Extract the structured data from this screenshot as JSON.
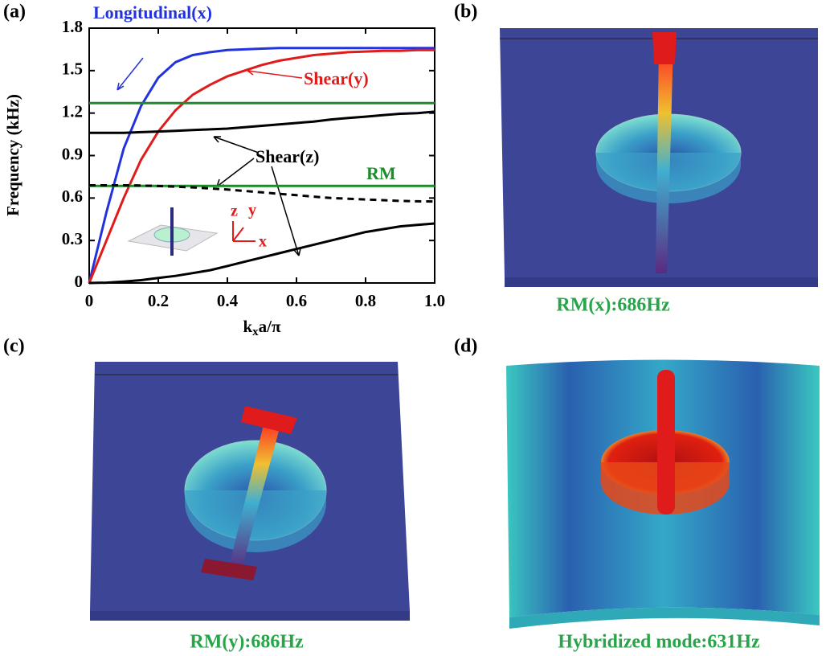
{
  "panels": {
    "labels": [
      "(a)",
      "(b)",
      "(c)",
      "(d)"
    ],
    "captions": [
      "RM(x):686Hz",
      "RM(y):686Hz",
      "Hybridized mode:631Hz"
    ]
  },
  "chart_data": {
    "type": "line",
    "ylabel": "Frequency (kHz)",
    "xlabel": [
      "k",
      "x",
      "a/π"
    ],
    "xlim": [
      0,
      1
    ],
    "ylim": [
      0,
      1.8
    ],
    "xticks": [
      0,
      0.2,
      0.4,
      0.6,
      0.8,
      {
        "value": 1,
        "label": "1.0"
      }
    ],
    "yticks": [
      0,
      0.3,
      0.6,
      0.9,
      1.2,
      1.5,
      1.8
    ],
    "x": [
      0,
      0.05,
      0.1,
      0.15,
      0.2,
      0.25,
      0.3,
      0.35,
      0.4,
      0.45,
      0.5,
      0.55,
      0.6,
      0.65,
      0.7,
      0.75,
      0.8,
      0.85,
      0.9,
      0.95,
      1
    ],
    "series": [
      {
        "color": "#2233dd",
        "style": "solid",
        "values": [
          0,
          0.5,
          0.95,
          1.25,
          1.45,
          1.56,
          1.61,
          1.63,
          1.645,
          1.65,
          1.655,
          1.66,
          1.66,
          1.66,
          1.66,
          1.66,
          1.66,
          1.66,
          1.66,
          1.66,
          1.66
        ]
      },
      {
        "color": "#e01b1b",
        "style": "solid",
        "values": [
          0,
          0.3,
          0.6,
          0.87,
          1.07,
          1.22,
          1.33,
          1.4,
          1.46,
          1.5,
          1.54,
          1.57,
          1.59,
          1.61,
          1.62,
          1.63,
          1.635,
          1.64,
          1.64,
          1.645,
          1.645
        ]
      },
      {
        "color": "#1e8c2a",
        "style": "solid",
        "values": [
          1.27,
          1.27,
          1.27,
          1.27,
          1.27,
          1.27,
          1.27,
          1.27,
          1.27,
          1.27,
          1.27,
          1.27,
          1.27,
          1.27,
          1.27,
          1.27,
          1.27,
          1.27,
          1.27,
          1.27,
          1.27
        ]
      },
      {
        "color": "#1e8c2a",
        "style": "solid",
        "values": [
          0.686,
          0.686,
          0.686,
          0.686,
          0.686,
          0.686,
          0.686,
          0.686,
          0.686,
          0.686,
          0.686,
          0.686,
          0.686,
          0.686,
          0.686,
          0.686,
          0.686,
          0.686,
          0.686,
          0.686,
          0.686
        ]
      },
      {
        "color": "#000000",
        "style": "solid",
        "values": [
          1.06,
          1.06,
          1.06,
          1.065,
          1.07,
          1.075,
          1.08,
          1.085,
          1.09,
          1.1,
          1.11,
          1.12,
          1.13,
          1.14,
          1.155,
          1.165,
          1.175,
          1.185,
          1.195,
          1.2,
          1.21
        ]
      },
      {
        "color": "#000000",
        "style": "dashed",
        "values": [
          0.69,
          0.69,
          0.69,
          0.688,
          0.685,
          0.68,
          0.675,
          0.668,
          0.66,
          0.65,
          0.64,
          0.63,
          0.62,
          0.61,
          0.6,
          0.595,
          0.59,
          0.585,
          0.58,
          0.577,
          0.575
        ]
      },
      {
        "color": "#000000",
        "style": "solid",
        "values": [
          0,
          0.002,
          0.01,
          0.02,
          0.035,
          0.05,
          0.07,
          0.09,
          0.12,
          0.15,
          0.18,
          0.21,
          0.24,
          0.27,
          0.3,
          0.33,
          0.36,
          0.38,
          0.4,
          0.41,
          0.42
        ]
      }
    ],
    "annotations": [
      {
        "text": "Longitudinal(x)",
        "color": "#2233dd"
      },
      {
        "text": "Shear(y)",
        "color": "#e01b1b"
      },
      {
        "text": "Shear(z)",
        "color": "#000000"
      },
      {
        "text": "RM",
        "color": "#1e8c2a"
      }
    ],
    "inset_axes": [
      "z",
      "y",
      "x"
    ]
  }
}
